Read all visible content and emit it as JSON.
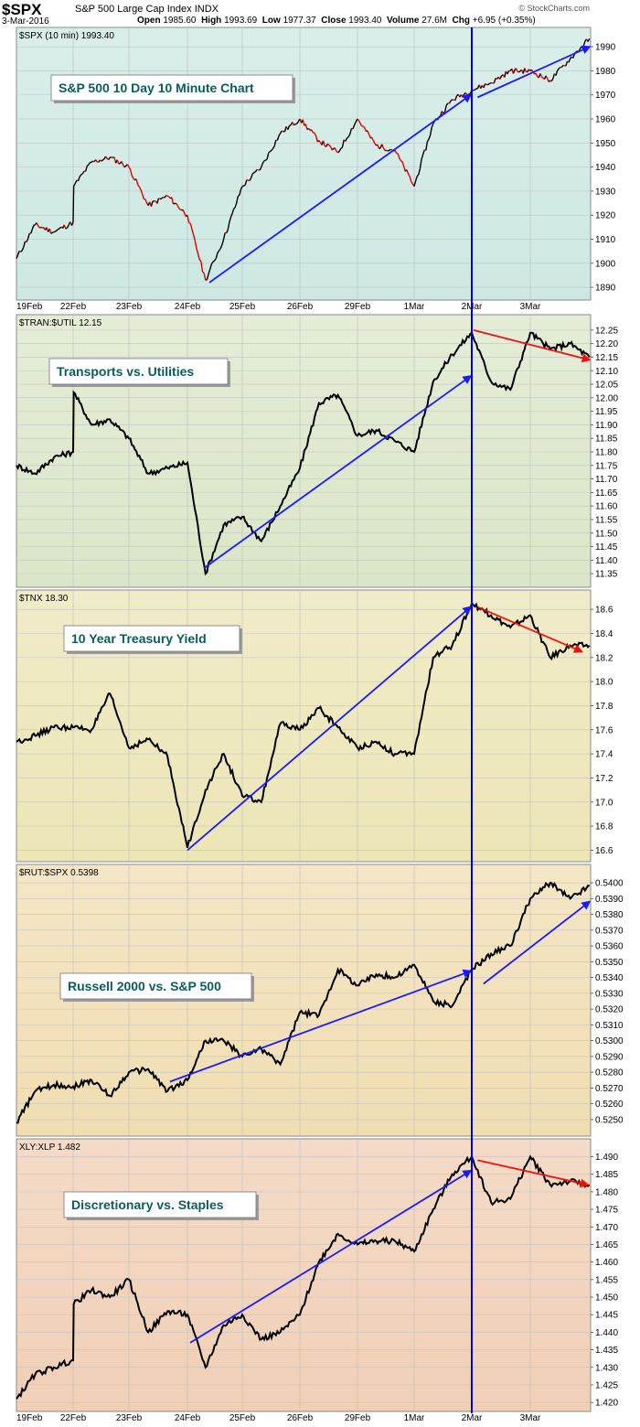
{
  "header": {
    "symbol": "$SPX",
    "name": "S&P 500 Large Cap Index",
    "exchange": "INDX",
    "date": "3-Mar-2016",
    "open_label": "Open",
    "open": "1985.60",
    "high_label": "High",
    "high": "1993.69",
    "low_label": "Low",
    "low": "1977.37",
    "close_label": "Close",
    "close": "1993.40",
    "volume_label": "Volume",
    "volume": "27.6M",
    "chg_label": "Chg",
    "chg": "+6.95 (+0.35%)",
    "brand": "© StockCharts.com"
  },
  "colors": {
    "price_up": "#000000",
    "price_down": "#e00000",
    "trend_blue": "#1a1aff",
    "trend_red": "#ee1111",
    "vline": "#0000dd",
    "panel_bg": [
      "#cde8e2",
      "#dbe6c8",
      "#ece5b6",
      "#f0ddb2",
      "#f0cfb5"
    ]
  },
  "x_axis": {
    "labels": [
      "19Feb",
      "22Feb",
      "23Feb",
      "24Feb",
      "25Feb",
      "26Feb",
      "29Feb",
      "1Mar",
      "2Mar",
      "3Mar"
    ]
  },
  "chart_data": [
    {
      "type": "line",
      "title": "$SPX (10 min) 1993.40",
      "annotation": "S&P 500 10 Day 10 Minute Chart",
      "ylim": [
        1887,
        1995
      ],
      "yticks": [
        "1890",
        "1900",
        "1910",
        "1920",
        "1930",
        "1940",
        "1950",
        "1960",
        "1970",
        "1980",
        "1990"
      ],
      "x": [
        0,
        0.33,
        0.66,
        1,
        1.01,
        1.33,
        1.66,
        2,
        2.33,
        2.66,
        3,
        3.33,
        3.66,
        4,
        4.33,
        4.66,
        5,
        5.33,
        5.66,
        6,
        6.33,
        6.66,
        7,
        7.33,
        7.66,
        8,
        8.33,
        8.66,
        9,
        9.33,
        9.66,
        9.98
      ],
      "values": [
        1902,
        1916,
        1913,
        1917,
        1932,
        1942,
        1944,
        1940,
        1924,
        1928,
        1920,
        1893,
        1910,
        1932,
        1940,
        1954,
        1960,
        1951,
        1946,
        1960,
        1949,
        1947,
        1932,
        1958,
        1968,
        1972,
        1975,
        1980,
        1980,
        1976,
        1985,
        1993.4
      ]
    },
    {
      "type": "line",
      "title": "$TRAN:$UTIL 12.15",
      "annotation": "Transports vs. Utilities",
      "ylim": [
        11.32,
        12.28
      ],
      "yticks": [
        "11.35",
        "11.40",
        "11.45",
        "11.50",
        "11.55",
        "11.60",
        "11.65",
        "11.70",
        "11.75",
        "11.80",
        "11.85",
        "11.90",
        "11.95",
        "12.00",
        "12.05",
        "12.10",
        "12.15",
        "12.20",
        "12.25"
      ],
      "x": [
        0,
        0.33,
        0.66,
        1,
        1.01,
        1.33,
        1.66,
        2,
        2.33,
        2.66,
        3,
        3.33,
        3.66,
        4,
        4.33,
        4.66,
        5,
        5.33,
        5.66,
        6,
        6.33,
        6.66,
        7,
        7.33,
        7.66,
        8,
        8.33,
        8.66,
        9,
        9.33,
        9.66,
        9.98
      ],
      "values": [
        11.75,
        11.72,
        11.78,
        11.8,
        12.02,
        11.9,
        11.92,
        11.85,
        11.72,
        11.74,
        11.76,
        11.35,
        11.53,
        11.56,
        11.47,
        11.6,
        11.74,
        11.98,
        12.01,
        11.86,
        11.88,
        11.84,
        11.8,
        12.06,
        12.16,
        12.24,
        12.06,
        12.03,
        12.24,
        12.18,
        12.2,
        12.15
      ]
    },
    {
      "type": "line",
      "title": "$TNX 18.30",
      "annotation": "10 Year Treasury Yield",
      "ylim": [
        16.55,
        18.7
      ],
      "yticks": [
        "16.6",
        "16.8",
        "17.0",
        "17.2",
        "17.4",
        "17.6",
        "17.8",
        "18.0",
        "18.2",
        "18.4",
        "18.6"
      ],
      "x": [
        0,
        0.33,
        0.66,
        1,
        1.33,
        1.66,
        2,
        2.33,
        2.66,
        3,
        3.33,
        3.66,
        4,
        4.33,
        4.66,
        5,
        5.33,
        5.66,
        6,
        6.33,
        6.66,
        7,
        7.33,
        7.66,
        8,
        8.33,
        8.66,
        9,
        9.33,
        9.66,
        9.98
      ],
      "values": [
        17.5,
        17.55,
        17.62,
        17.62,
        17.6,
        17.9,
        17.45,
        17.52,
        17.38,
        16.62,
        17.1,
        17.4,
        17.05,
        17.0,
        17.65,
        17.6,
        17.78,
        17.62,
        17.45,
        17.5,
        17.4,
        17.4,
        18.2,
        18.3,
        18.65,
        18.55,
        18.45,
        18.55,
        18.2,
        18.3,
        18.3
      ]
    },
    {
      "type": "line",
      "title": "$RUT:$SPX 0.5398",
      "annotation": "Russell 2000 vs. S&P 500",
      "ylim": [
        0.5243,
        0.5407
      ],
      "yticks": [
        "0.5250",
        "0.5260",
        "0.5270",
        "0.5280",
        "0.5290",
        "0.5300",
        "0.5310",
        "0.5320",
        "0.5330",
        "0.5340",
        "0.5350",
        "0.5360",
        "0.5370",
        "0.5380",
        "0.5390",
        "0.5400"
      ],
      "x": [
        0,
        0.33,
        0.66,
        1,
        1.33,
        1.66,
        2,
        2.33,
        2.66,
        3,
        3.33,
        3.66,
        4,
        4.33,
        4.66,
        5,
        5.33,
        5.66,
        6,
        6.33,
        6.66,
        7,
        7.33,
        7.66,
        8,
        8.33,
        8.66,
        9,
        9.33,
        9.66,
        9.98
      ],
      "values": [
        0.5248,
        0.5268,
        0.5272,
        0.5271,
        0.5275,
        0.5265,
        0.528,
        0.5282,
        0.5268,
        0.5275,
        0.53,
        0.53,
        0.529,
        0.5295,
        0.5285,
        0.5318,
        0.5316,
        0.5345,
        0.5335,
        0.5342,
        0.534,
        0.5348,
        0.5325,
        0.5322,
        0.5345,
        0.5355,
        0.536,
        0.539,
        0.54,
        0.539,
        0.5398
      ]
    },
    {
      "type": "line",
      "title": "XLY:XLP 1.482",
      "annotation": "Discretionary vs. Staples",
      "ylim": [
        1.419,
        1.493
      ],
      "yticks": [
        "1.420",
        "1.425",
        "1.430",
        "1.435",
        "1.440",
        "1.445",
        "1.450",
        "1.455",
        "1.460",
        "1.465",
        "1.470",
        "1.475",
        "1.480",
        "1.485",
        "1.490"
      ],
      "x": [
        0,
        0.33,
        0.66,
        1,
        1.01,
        1.33,
        1.66,
        2,
        2.33,
        2.66,
        3,
        3.33,
        3.66,
        4,
        4.33,
        4.66,
        5,
        5.33,
        5.66,
        6,
        6.33,
        6.66,
        7,
        7.33,
        7.66,
        8,
        8.33,
        8.66,
        9,
        9.33,
        9.66,
        9.98
      ],
      "values": [
        1.421,
        1.428,
        1.43,
        1.432,
        1.448,
        1.452,
        1.45,
        1.455,
        1.44,
        1.446,
        1.445,
        1.43,
        1.442,
        1.445,
        1.438,
        1.44,
        1.445,
        1.46,
        1.468,
        1.465,
        1.466,
        1.466,
        1.463,
        1.475,
        1.485,
        1.49,
        1.477,
        1.478,
        1.49,
        1.482,
        1.483,
        1.482
      ]
    }
  ]
}
